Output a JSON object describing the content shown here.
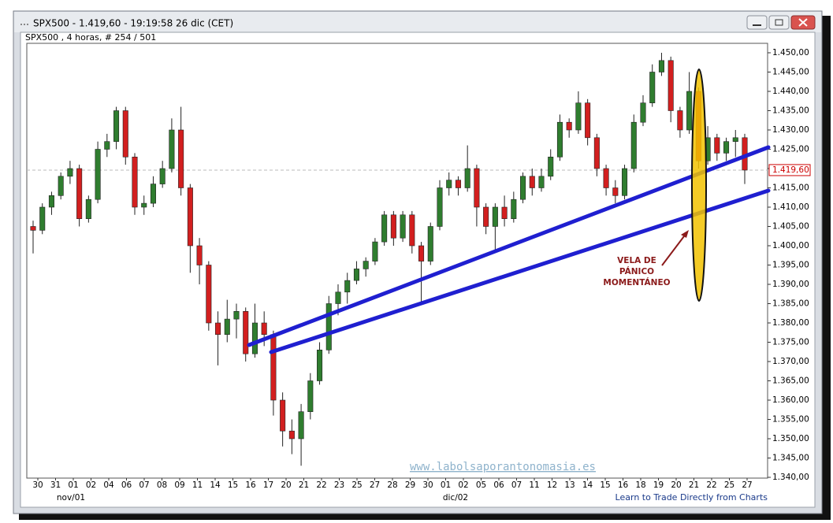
{
  "chart_data": {
    "type": "candlestick",
    "title": "SPX500 - 1.419,60 - 19:19:58  26 dic (CET)",
    "subtitle": "SPX500 , 4 horas, # 254 / 501",
    "up_color": "#2f7d2f",
    "down_color": "#d21f1f",
    "open": [
      1405,
      1404,
      1410,
      1413,
      1418,
      1420,
      1407,
      1412,
      1425,
      1427,
      1435,
      1423,
      1410,
      1411,
      1416,
      1420,
      1430,
      1415,
      1400,
      1395,
      1380,
      1377,
      1381,
      1383,
      1372,
      1380,
      1377,
      1360,
      1352,
      1350,
      1357,
      1365,
      1373,
      1385,
      1388,
      1391,
      1394,
      1396,
      1401,
      1408,
      1402,
      1408,
      1400,
      1396,
      1405,
      1415,
      1417,
      1415,
      1420,
      1410,
      1405,
      1410,
      1407,
      1412,
      1418,
      1415,
      1418,
      1423,
      1432,
      1430,
      1437,
      1428,
      1420,
      1415,
      1413,
      1420,
      1432,
      1437,
      1445,
      1448,
      1435,
      1430,
      1440,
      1422,
      1428,
      1424,
      1427,
      1428
    ],
    "high": [
      1406.5,
      1411,
      1414,
      1419,
      1422,
      1421,
      1413,
      1427,
      1429,
      1436,
      1436,
      1424,
      1413,
      1418,
      1422,
      1433,
      1436,
      1416,
      1402,
      1396,
      1383,
      1386,
      1385,
      1384,
      1385,
      1383,
      1378,
      1362,
      1355,
      1359,
      1367,
      1375,
      1387,
      1390,
      1393,
      1396,
      1397,
      1402,
      1409,
      1409,
      1409,
      1409,
      1401,
      1406,
      1417,
      1419,
      1418,
      1426,
      1421,
      1411,
      1411,
      1413,
      1414,
      1419,
      1420,
      1420,
      1425,
      1434,
      1433,
      1440,
      1438,
      1429,
      1421,
      1417,
      1421,
      1434,
      1439,
      1447,
      1450,
      1449,
      1436,
      1445,
      1441,
      1431,
      1429,
      1428,
      1430,
      1429
    ],
    "low": [
      1398,
      1403,
      1408,
      1412,
      1416,
      1405,
      1406,
      1411,
      1423,
      1425,
      1421,
      1408,
      1408,
      1410,
      1415,
      1419,
      1413,
      1393,
      1390,
      1378,
      1369,
      1375,
      1376,
      1370,
      1371,
      1374,
      1356,
      1348,
      1346,
      1343,
      1355,
      1364,
      1372,
      1382,
      1385,
      1390,
      1392,
      1395,
      1400,
      1400,
      1401,
      1398,
      1385,
      1395,
      1404,
      1413,
      1413,
      1414,
      1405,
      1403,
      1399,
      1405,
      1406,
      1411,
      1413,
      1414,
      1417,
      1422,
      1428,
      1429,
      1426,
      1418,
      1413,
      1411,
      1412,
      1419,
      1431,
      1436,
      1444,
      1432,
      1428,
      1429,
      1420,
      1421,
      1422,
      1422,
      1423,
      1416
    ],
    "close": [
      1404,
      1410,
      1413,
      1418,
      1420,
      1407,
      1412,
      1425,
      1427,
      1435,
      1423,
      1410,
      1411,
      1416,
      1420,
      1430,
      1415,
      1400,
      1395,
      1380,
      1377,
      1381,
      1383,
      1372,
      1380,
      1377,
      1360,
      1352,
      1350,
      1357,
      1365,
      1373,
      1385,
      1388,
      1391,
      1394,
      1396,
      1401,
      1408,
      1402,
      1408,
      1400,
      1396,
      1405,
      1415,
      1417,
      1415,
      1420,
      1410,
      1405,
      1410,
      1407,
      1412,
      1418,
      1415,
      1418,
      1423,
      1432,
      1430,
      1437,
      1428,
      1420,
      1415,
      1413,
      1420,
      1432,
      1437,
      1445,
      1448,
      1435,
      1430,
      1440,
      1422,
      1428,
      1424,
      1427,
      1428,
      1419.6
    ],
    "ylim": [
      1340,
      1450
    ],
    "yticks": [
      {
        "value": 1340,
        "label": "1.340,00"
      },
      {
        "value": 1345,
        "label": "1.345,00"
      },
      {
        "value": 1350,
        "label": "1.350,00"
      },
      {
        "value": 1355,
        "label": "1.355,00"
      },
      {
        "value": 1360,
        "label": "1.360,00"
      },
      {
        "value": 1365,
        "label": "1.365,00"
      },
      {
        "value": 1370,
        "label": "1.370,00"
      },
      {
        "value": 1375,
        "label": "1.375,00"
      },
      {
        "value": 1380,
        "label": "1.380,00"
      },
      {
        "value": 1385,
        "label": "1.385,00"
      },
      {
        "value": 1390,
        "label": "1.390,00"
      },
      {
        "value": 1395,
        "label": "1.395,00"
      },
      {
        "value": 1400,
        "label": "1.400,00"
      },
      {
        "value": 1405,
        "label": "1.405,00"
      },
      {
        "value": 1410,
        "label": "1.410,00"
      },
      {
        "value": 1415,
        "label": "1.415,00"
      },
      {
        "value": 1420,
        "label": "1.420,00"
      },
      {
        "value": 1425,
        "label": "1.425,00"
      },
      {
        "value": 1430,
        "label": "1.430,00"
      },
      {
        "value": 1435,
        "label": "1.435,00"
      },
      {
        "value": 1440,
        "label": "1.440,00"
      },
      {
        "value": 1445,
        "label": "1.445,00"
      },
      {
        "value": 1450,
        "label": "1.450,00"
      }
    ],
    "last_price": {
      "value": 1419.6,
      "label": "1.419,60"
    },
    "x_labels": [
      "30",
      "31",
      "01",
      "02",
      "04",
      "06",
      "07",
      "08",
      "09",
      "11",
      "14",
      "15",
      "16",
      "17",
      "20",
      "21",
      "22",
      "23",
      "25",
      "27",
      "28",
      "29",
      "30",
      "01",
      "02",
      "05",
      "06",
      "07",
      "11",
      "12",
      "13",
      "14",
      "15",
      "16",
      "18",
      "19",
      "20",
      "21",
      "22",
      "25",
      "27"
    ],
    "month_labels": [
      "nov/01",
      "dic/02"
    ],
    "annotation": [
      "VELA DE",
      "PÁNICO",
      "MOMENTÁNEO"
    ],
    "watermark": "www.labolsaporantonomasia.es",
    "footer": "Learn to Trade Directly from Charts",
    "grid": false
  }
}
